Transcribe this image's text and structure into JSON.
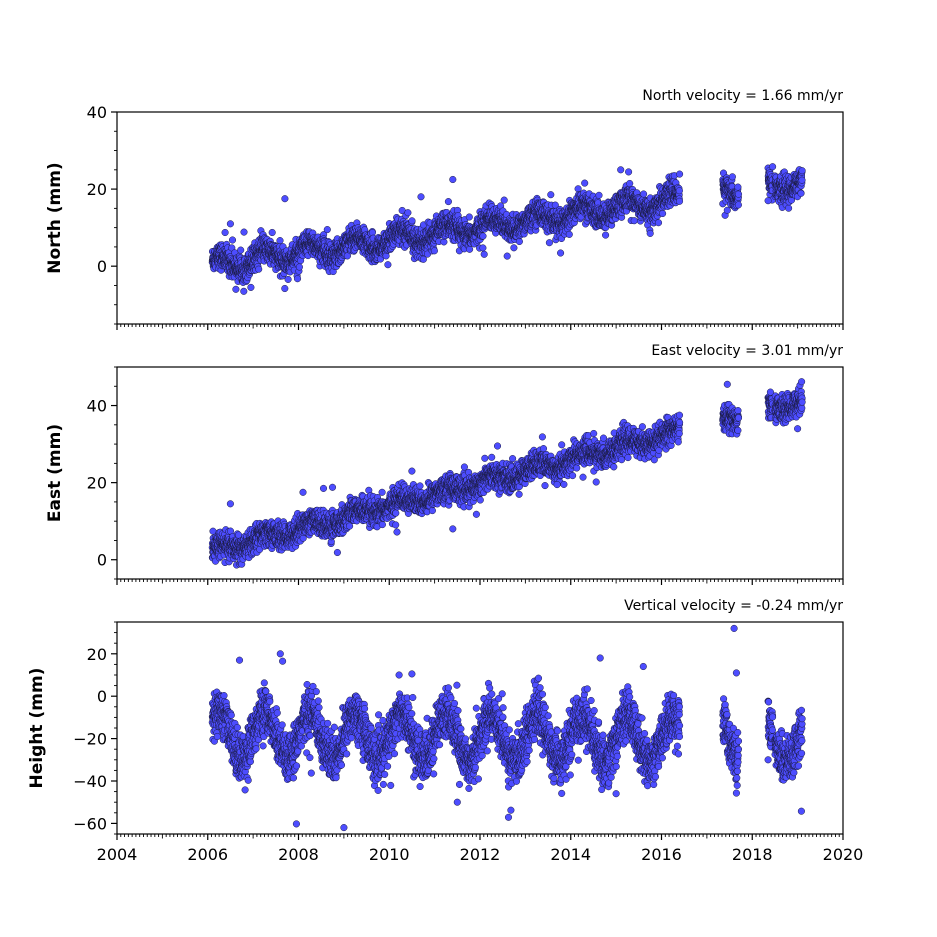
{
  "chart_data": [
    {
      "type": "scatter",
      "id": "north",
      "title": "North velocity = 1.66 mm/yr",
      "ylabel": "North (mm)",
      "ylim": [
        -15,
        40
      ],
      "yticks": [
        0,
        20,
        40
      ],
      "xlim": [
        2004,
        2020
      ],
      "xticks": [
        2004,
        2006,
        2008,
        2010,
        2012,
        2014,
        2016,
        2018,
        2020
      ],
      "color": "#4d4dff",
      "velocity_mm_per_yr": 1.66,
      "model": {
        "t0": 2006.2,
        "y0": 0.5,
        "amp": 2.0,
        "noise": 1.6,
        "spike": 0.02
      },
      "segments": [
        [
          2006.1,
          2016.4
        ],
        [
          2017.35,
          2017.7
        ],
        [
          2018.35,
          2018.45
        ],
        [
          2018.5,
          2019.1
        ]
      ],
      "outliers": [
        [
          2006.5,
          11
        ],
        [
          2006.95,
          -5.5
        ],
        [
          2007.7,
          17.5
        ],
        [
          2010.7,
          18
        ],
        [
          2011.4,
          22.5
        ],
        [
          2015.1,
          25
        ],
        [
          2015.75,
          8.5
        ],
        [
          2017.45,
          14.5
        ],
        [
          2018.35,
          17
        ]
      ]
    },
    {
      "type": "scatter",
      "id": "east",
      "title": "East velocity = 3.01 mm/yr",
      "ylabel": "East (mm)",
      "ylim": [
        -5,
        50
      ],
      "yticks": [
        0,
        20,
        40
      ],
      "xlim": [
        2004,
        2020
      ],
      "xticks": [
        2004,
        2006,
        2008,
        2010,
        2012,
        2014,
        2016,
        2018,
        2020
      ],
      "color": "#4d4dff",
      "velocity_mm_per_yr": 3.01,
      "model": {
        "t0": 2006.2,
        "y0": 2.5,
        "amp": 1.2,
        "noise": 1.6,
        "spike": 0.015
      },
      "segments": [
        [
          2006.1,
          2016.4
        ],
        [
          2017.35,
          2017.7
        ],
        [
          2018.35,
          2018.45
        ],
        [
          2018.5,
          2019.1
        ]
      ],
      "outliers": [
        [
          2006.5,
          14.5
        ],
        [
          2008.1,
          17.5
        ],
        [
          2008.55,
          18.5
        ],
        [
          2008.75,
          18.8
        ],
        [
          2010.5,
          23
        ],
        [
          2011.4,
          8
        ],
        [
          2013.7,
          19.5
        ],
        [
          2017.45,
          45.5
        ],
        [
          2018.4,
          43.5
        ],
        [
          2019.0,
          34
        ]
      ]
    },
    {
      "type": "scatter",
      "id": "vertical",
      "title": "Vertical velocity = -0.24 mm/yr",
      "ylabel": "Height (mm)",
      "ylim": [
        -65,
        35
      ],
      "yticks": [
        -60,
        -40,
        -20,
        0,
        20
      ],
      "xlim": [
        2004,
        2020
      ],
      "xticks": [
        2004,
        2006,
        2008,
        2010,
        2012,
        2014,
        2016,
        2018,
        2020
      ],
      "xticklabels": [
        "2004",
        "2006",
        "2008",
        "2010",
        "2012",
        "2014",
        "2016",
        "2018",
        "2020"
      ],
      "color": "#4d4dff",
      "velocity_mm_per_yr": -0.24,
      "model": {
        "t0": 2006.2,
        "y0": -18,
        "amp": 11,
        "noise": 5.5,
        "spike": 0.01
      },
      "segments": [
        [
          2006.1,
          2016.4
        ],
        [
          2017.35,
          2017.7
        ],
        [
          2018.35,
          2018.45
        ],
        [
          2018.5,
          2019.1
        ]
      ],
      "outliers": [
        [
          2006.7,
          17
        ],
        [
          2007.6,
          20
        ],
        [
          2007.65,
          16.5
        ],
        [
          2009.0,
          -62
        ],
        [
          2010.5,
          10.5
        ],
        [
          2011.5,
          -50
        ],
        [
          2014.65,
          18
        ],
        [
          2015.0,
          -46
        ],
        [
          2015.6,
          14
        ],
        [
          2017.6,
          32
        ],
        [
          2017.65,
          11
        ],
        [
          2018.35,
          -30
        ]
      ]
    }
  ]
}
